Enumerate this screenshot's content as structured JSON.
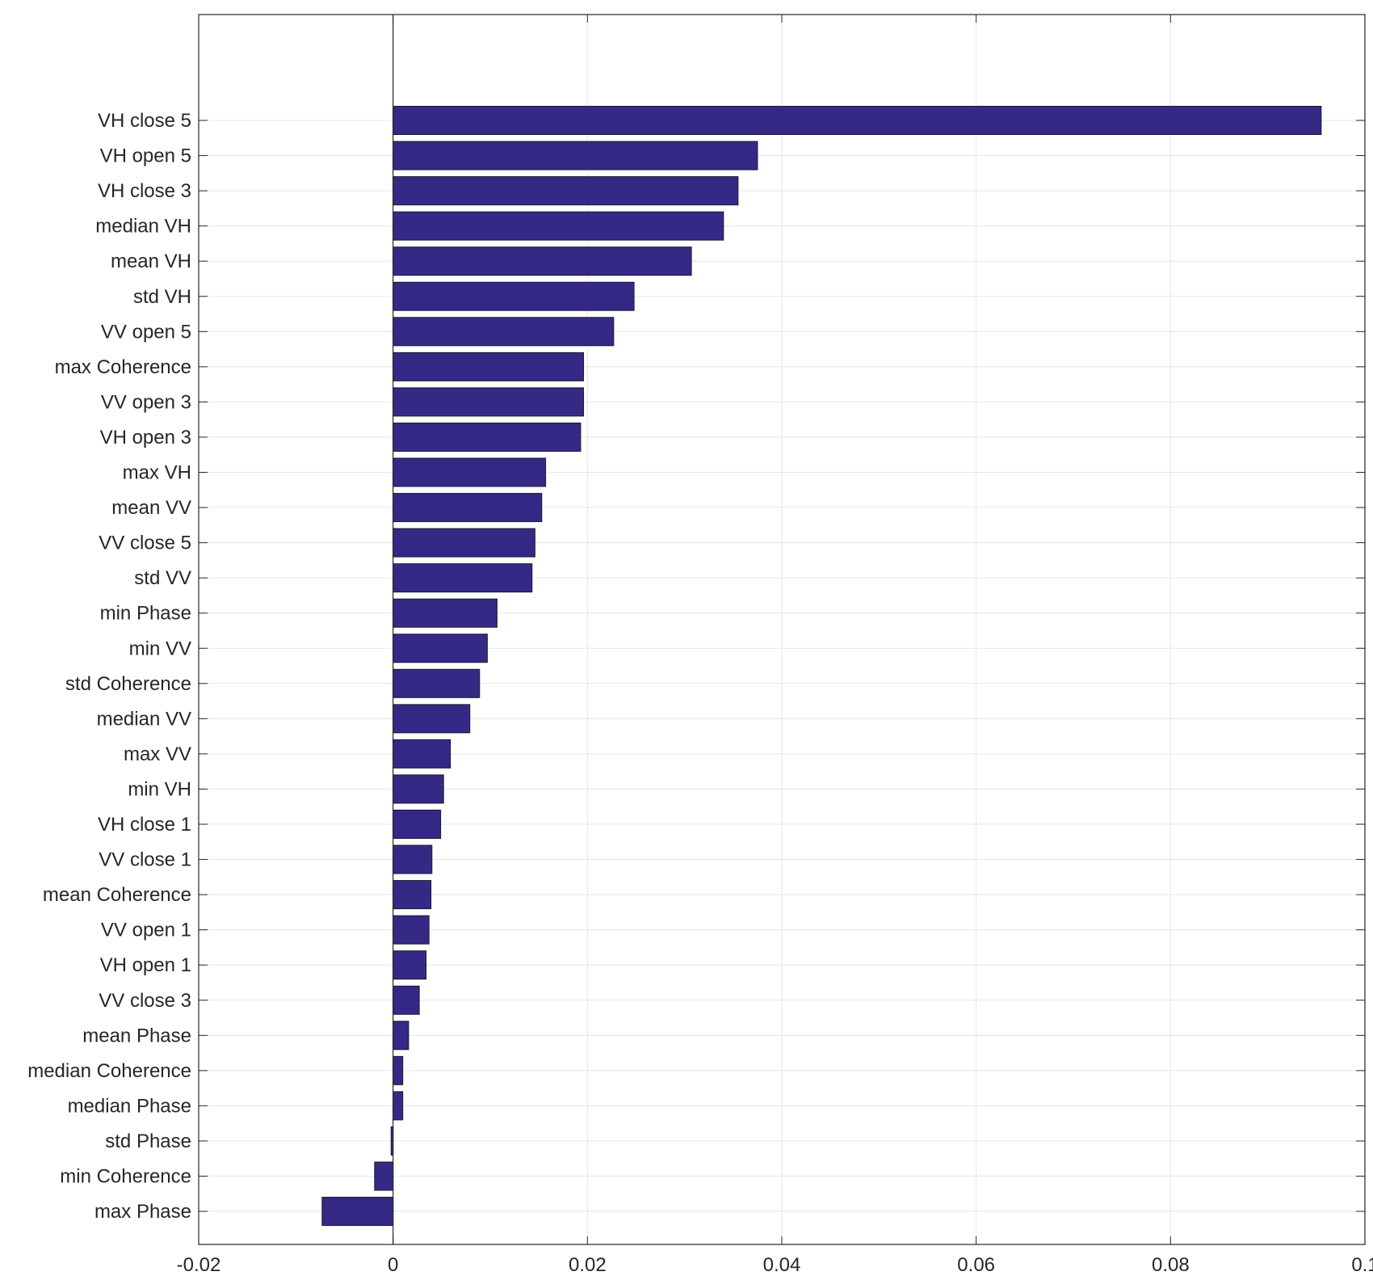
{
  "chart_data": {
    "type": "bar",
    "orientation": "horizontal",
    "title": "",
    "xlabel": "",
    "ylabel": "",
    "xlim": [
      -0.02,
      0.1
    ],
    "x_ticks": [
      -0.02,
      0,
      0.02,
      0.04,
      0.06,
      0.08,
      0.1
    ],
    "x_tick_labels": [
      "-0.02",
      "0",
      "0.02",
      "0.04",
      "0.06",
      "0.08",
      "0.1"
    ],
    "grid": true,
    "bar_color": "#342a86",
    "categories": [
      "VH close 5",
      "VH open 5",
      "VH close 3",
      "median VH",
      "mean VH",
      "std VH",
      "VV open 5",
      "max Coherence",
      "VV open 3",
      "VH open 3",
      "max VH",
      "mean VV",
      "VV close 5",
      "std VV",
      "min Phase",
      "min VV",
      "std Coherence",
      "median VV",
      "max VV",
      "min VH",
      "VH close 1",
      "VV close 1",
      "mean Coherence",
      "VV open 1",
      "VH open 1",
      "VV close 3",
      "mean Phase",
      "median Coherence",
      "median Phase",
      "std Phase",
      "min Coherence",
      "max Phase"
    ],
    "values": [
      0.0955,
      0.0375,
      0.0355,
      0.034,
      0.0307,
      0.0248,
      0.0227,
      0.0196,
      0.0196,
      0.0193,
      0.0157,
      0.0153,
      0.0146,
      0.0143,
      0.0107,
      0.0097,
      0.0089,
      0.0079,
      0.0059,
      0.0052,
      0.0049,
      0.004,
      0.0039,
      0.0037,
      0.0034,
      0.0027,
      0.0016,
      0.001,
      0.001,
      -0.0002,
      -0.0019,
      -0.0073
    ]
  }
}
